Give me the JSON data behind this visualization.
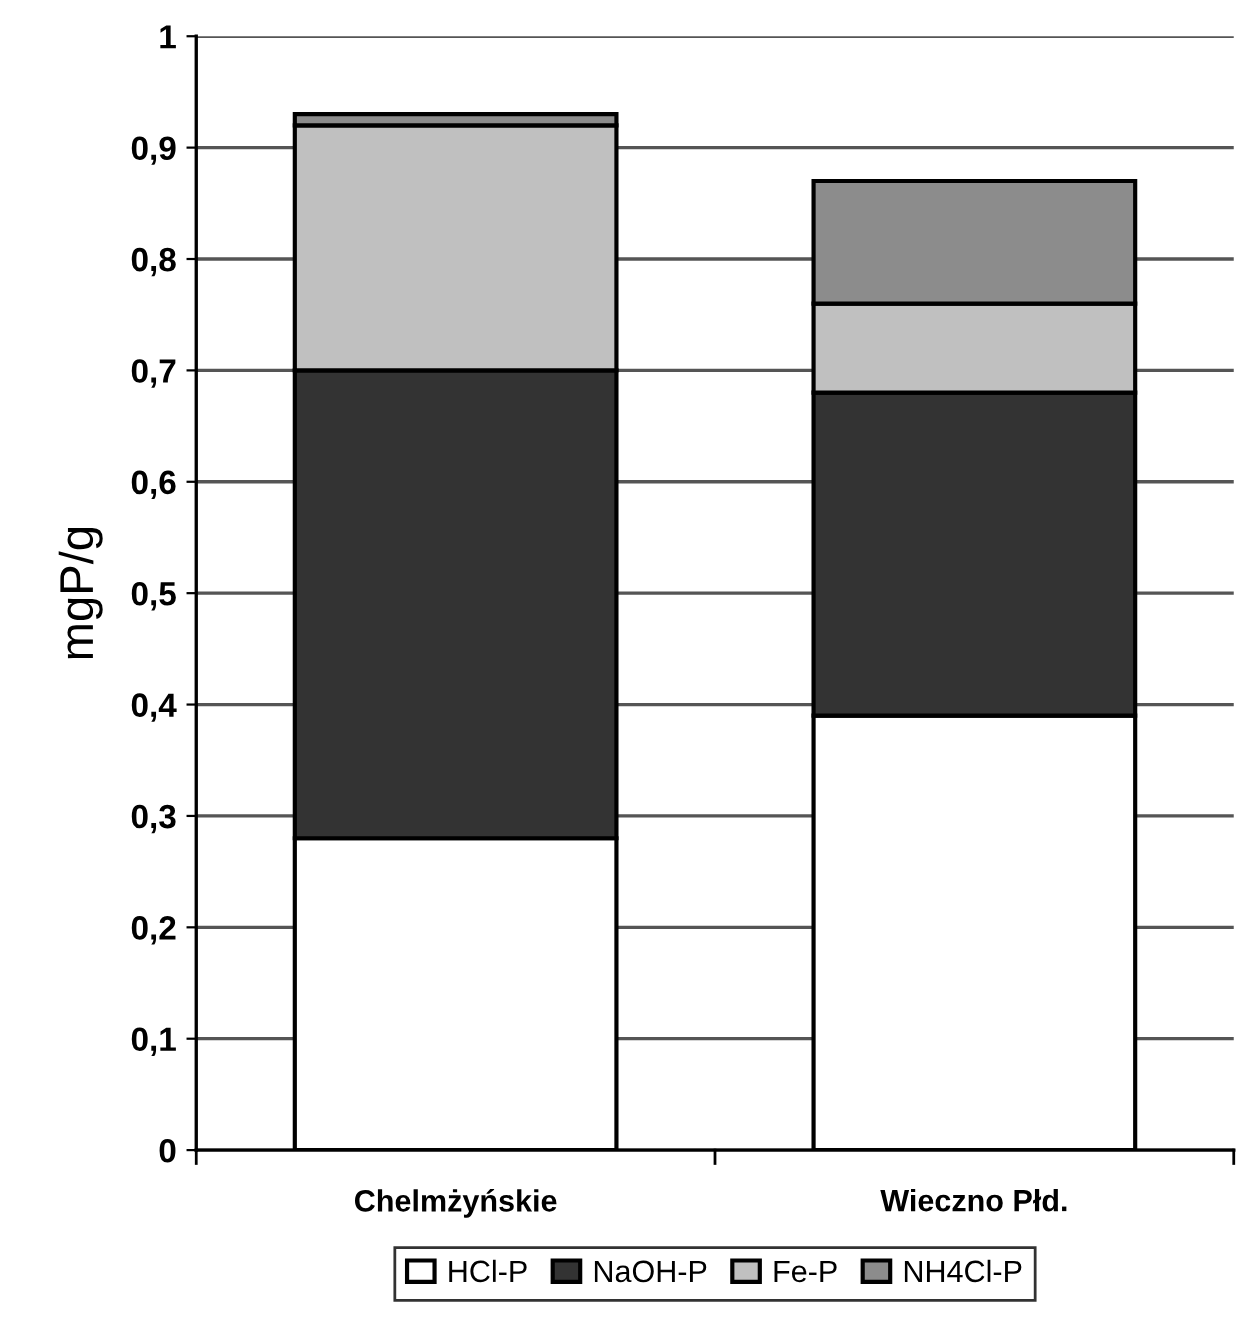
{
  "chart_data": {
    "type": "bar",
    "stacked": true,
    "ylabel": "mgP/g",
    "categories": [
      "Chelmżyńskie",
      "Wieczno Płd."
    ],
    "series": [
      {
        "name": "HCl-P",
        "color": "#ffffff",
        "values": [
          0.28,
          0.39
        ]
      },
      {
        "name": "NaOH-P",
        "color": "#333333",
        "values": [
          0.42,
          0.29
        ]
      },
      {
        "name": "Fe-P",
        "color": "#c0c0c0",
        "values": [
          0.22,
          0.08
        ]
      },
      {
        "name": "NH4Cl-P",
        "color": "#8c8c8c",
        "values": [
          0.01,
          0.11
        ]
      }
    ],
    "ylim": [
      0,
      1
    ],
    "yticks": [
      0,
      {
        "value": 0.1,
        "label": "0,1"
      },
      {
        "value": 0.2,
        "label": "0,2"
      },
      {
        "value": 0.3,
        "label": "0,3"
      },
      {
        "value": 0.4,
        "label": "0,4"
      },
      {
        "value": 0.5,
        "label": "0,5"
      },
      {
        "value": 0.6,
        "label": "0,6"
      },
      {
        "value": 0.7,
        "label": "0,7"
      },
      {
        "value": 0.8,
        "label": "0,8"
      },
      {
        "value": 0.9,
        "label": "0,9"
      },
      1
    ],
    "grid": "y",
    "legend": "bottom"
  }
}
